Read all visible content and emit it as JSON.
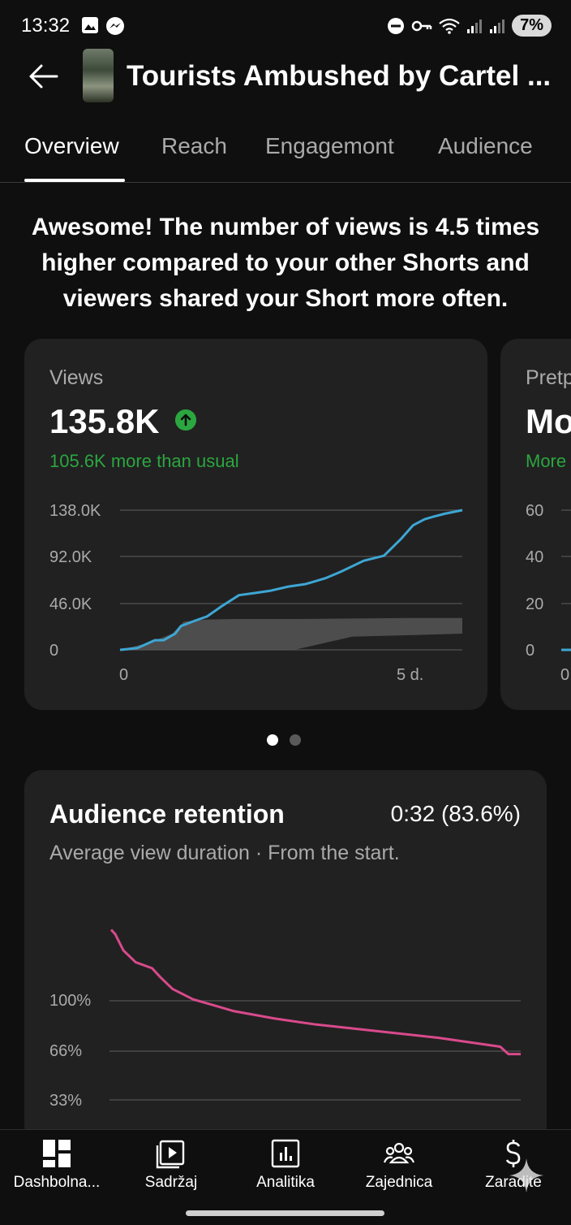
{
  "status_bar": {
    "time": "13:32",
    "battery": "7%"
  },
  "header": {
    "title": "Tourists Ambushed by Cartel ..."
  },
  "tabs": [
    {
      "label": "Overview",
      "active": true
    },
    {
      "label": "Reach",
      "active": false
    },
    {
      "label": "Engagemont",
      "active": false
    },
    {
      "label": "Audience",
      "active": false
    }
  ],
  "headline": "Awesome! The number of views is 4.5 times higher compared to your other Shorts and viewers shared your Short more often.",
  "views_card": {
    "label": "Views",
    "value": "135.8K",
    "sub": "105.6K more than usual",
    "y_ticks": [
      "138.0K",
      "92.0K",
      "46.0K",
      "0"
    ],
    "x_ticks": [
      "0",
      "5 d."
    ]
  },
  "peek_card": {
    "label": "Pretp",
    "value": "Mo",
    "sub": "More",
    "y_ticks": [
      "60",
      "40",
      "20",
      "0"
    ],
    "x_tick": "0"
  },
  "retention_card": {
    "title": "Audience retention",
    "value": "0:32 (83.6%)",
    "sub": "Average view duration · From the start.",
    "y_ticks": [
      "100%",
      "66%",
      "33%"
    ]
  },
  "chart_data": [
    {
      "type": "line",
      "title": "Views",
      "x_unit": "days",
      "xlim": [
        0,
        5.9
      ],
      "ylim": [
        0,
        138000
      ],
      "series": [
        {
          "color": "#3ea6d4",
          "x": [
            0,
            0.3,
            0.6,
            0.75,
            0.95,
            1.05,
            1.3,
            1.5,
            1.75,
            2.05,
            2.3,
            2.6,
            2.9,
            3.2,
            3.55,
            3.8,
            4.2,
            4.55,
            4.85,
            5.05,
            5.25,
            5.4,
            5.6,
            5.9
          ],
          "y": [
            0,
            1800,
            9500,
            9500,
            16000,
            23500,
            29000,
            33000,
            43000,
            54000,
            56000,
            58500,
            62500,
            65000,
            71000,
            77000,
            88000,
            93000,
            110000,
            123000,
            129000,
            131500,
            134500,
            138000
          ]
        }
      ],
      "area": {
        "color": "#555555",
        "label": "typical range",
        "x": [
          0,
          0.5,
          0.9,
          1.1,
          1.5,
          2.0,
          3.0,
          4.0,
          5.0,
          5.9
        ],
        "upper": [
          0,
          7000,
          16000,
          28000,
          30000,
          30500,
          30500,
          31000,
          31500,
          31500
        ],
        "lower": [
          0,
          0,
          0,
          0,
          0,
          0,
          0,
          13000,
          14500,
          16000
        ]
      }
    },
    {
      "type": "line",
      "title": "Audience retention",
      "y_unit": "percent",
      "ylim": [
        33,
        150
      ],
      "series": [
        {
          "color": "#d94a8c",
          "x": [
            0,
            0.01,
            0.03,
            0.06,
            0.1,
            0.12,
            0.15,
            0.2,
            0.25,
            0.3,
            0.4,
            0.5,
            0.6,
            0.7,
            0.8,
            0.9,
            0.95,
            0.97,
            1.0
          ],
          "y": [
            148,
            145,
            134,
            126,
            122,
            116,
            108,
            101,
            97,
            93,
            88,
            84,
            81,
            78,
            75,
            71,
            69,
            64,
            64
          ]
        }
      ]
    }
  ],
  "bottom_nav": [
    {
      "label": "Dashbolna...",
      "icon": "dashboard-icon"
    },
    {
      "label": "Sadržaj",
      "icon": "content-icon"
    },
    {
      "label": "Analitika",
      "icon": "analytics-icon"
    },
    {
      "label": "Zajednica",
      "icon": "community-icon"
    },
    {
      "label": "Zaradite",
      "icon": "earn-icon"
    }
  ]
}
